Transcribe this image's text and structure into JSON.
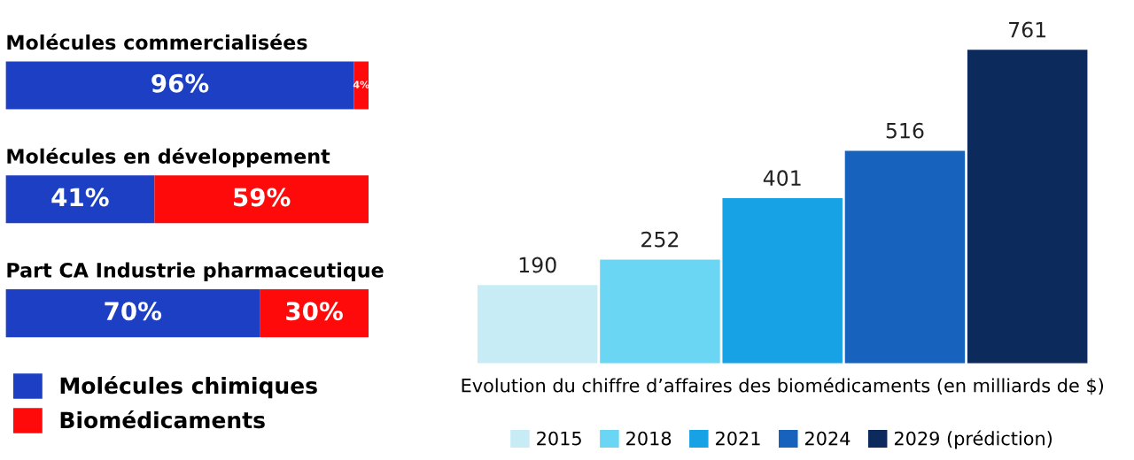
{
  "chart_data": [
    {
      "type": "bar",
      "orientation": "horizontal",
      "stacked": true,
      "categories": [
        "Molécules commercialisées",
        "Molécules en développement",
        "Part CA Industrie pharmaceutique"
      ],
      "series": [
        {
          "name": "Molécules chimiques",
          "color": "#1c3fc4",
          "values": [
            96,
            41,
            70
          ],
          "value_labels": [
            "96%",
            "41%",
            "70%"
          ]
        },
        {
          "name": "Biomédicaments",
          "color": "#ff0a0a",
          "values": [
            4,
            59,
            30
          ],
          "value_labels": [
            "4%",
            "59%",
            "30%"
          ]
        }
      ],
      "tick_labels": false,
      "legend": "bottom left"
    },
    {
      "type": "bar",
      "stacked": true,
      "categories": [
        null,
        null,
        null,
        null,
        null
      ],
      "series": [
        {
          "name": "2015",
          "color": "#c8ecf6",
          "values": [
            190,
            null,
            null,
            null,
            null
          ]
        },
        {
          "name": "2018",
          "color": "#6ad6f3",
          "values": [
            null,
            252,
            null,
            null,
            null
          ]
        },
        {
          "name": "2021",
          "color": "#18a2e6",
          "values": [
            null,
            null,
            401,
            null,
            null
          ]
        },
        {
          "name": "2024",
          "color": "#1762bd",
          "values": [
            null,
            null,
            null,
            516,
            null
          ]
        },
        {
          "name": "2029 (prédiction)",
          "color": "#0c2a5c",
          "values": [
            null,
            null,
            null,
            null,
            761
          ]
        }
      ],
      "xlabel": "Evolution du chiffre d’affaires des biomédicaments (en milliards de $)",
      "tick_labels": false,
      "data_labels": true,
      "legend": "bottom"
    }
  ]
}
